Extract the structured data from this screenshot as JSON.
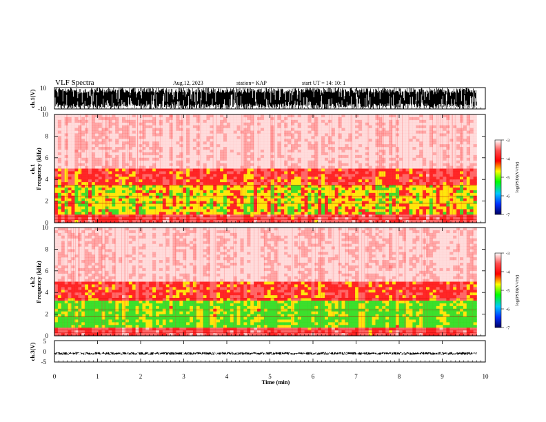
{
  "header": {
    "title": "VLF Spectra",
    "date": "Aug.12, 2023",
    "station": "station= KAP",
    "start": "start  UT  =   14: 10: 1"
  },
  "colors": {
    "background": "#ffffff",
    "waveform": "#000000",
    "spec_low": "#ffffff",
    "spec_mid": "#ff2020",
    "spec_high": "#ffee00",
    "spec_peak": "#22dd22"
  },
  "chart_data": [
    {
      "type": "line",
      "panel": "ch1-waveform",
      "ylabel": "ch.1(V)",
      "ylim": [
        -10,
        10
      ],
      "ytick_labels": [
        "10",
        "-10"
      ],
      "xlim": [
        0,
        10
      ],
      "description_of_values": "saturated waveform clipping near +10 and -10"
    },
    {
      "type": "heatmap",
      "panel": "ch1-spectrogram",
      "ylabel": "ch.1\nFrequency  (kHz)",
      "ylabel_line1": "ch.1",
      "ylabel_line2": "Frequency  (kHz)",
      "ylim": [
        0,
        10
      ],
      "ytick_labels": [
        "0",
        "2",
        "4",
        "6",
        "8",
        "10"
      ],
      "xlim": [
        0,
        9.8
      ],
      "band_kHz": [
        {
          "range": [
            0,
            0.7
          ],
          "level": -4.2
        },
        {
          "range": [
            0.7,
            3.5
          ],
          "level": -3.6
        },
        {
          "range": [
            3.5,
            5
          ],
          "level": -4.0
        },
        {
          "range": [
            5,
            10
          ],
          "level": -4.6
        }
      ],
      "colorbar": {
        "label": "log(PSD)(V²/Hz)",
        "range": [
          -7,
          -3
        ],
        "tick_labels": [
          "-3",
          "-4",
          "-5",
          "-6",
          "-7"
        ]
      }
    },
    {
      "type": "heatmap",
      "panel": "ch2-spectrogram",
      "ylabel": "ch.2\nFrequency  (kHz)",
      "ylabel_line1": "ch.2",
      "ylabel_line2": "Frequency  (kHz)",
      "ylim": [
        0,
        10
      ],
      "ytick_labels": [
        "0",
        "2",
        "4",
        "6",
        "8",
        "10"
      ],
      "xlim": [
        0,
        9.8
      ],
      "band_kHz": [
        {
          "range": [
            0,
            0.7
          ],
          "level": -4.2
        },
        {
          "range": [
            0.7,
            3.2
          ],
          "level": -3.3
        },
        {
          "range": [
            3.2,
            5
          ],
          "level": -4.0
        },
        {
          "range": [
            5,
            10
          ],
          "level": -4.6
        }
      ],
      "colorbar": {
        "label": "log(PSD)(V²/Hz)",
        "range": [
          -7,
          -3
        ],
        "tick_labels": [
          "-3",
          "-4",
          "-5",
          "-6",
          "-7"
        ]
      }
    },
    {
      "type": "line",
      "panel": "ch3-waveform",
      "ylabel": "ch.3(V)",
      "ylim": [
        -5,
        5
      ],
      "ytick_labels": [
        "5",
        "0",
        "-5"
      ],
      "xlim": [
        0,
        10
      ],
      "description_of_values": "flat signal near -1 V"
    }
  ],
  "xaxis": {
    "label": "Time  (min)",
    "range": [
      0,
      10
    ],
    "tick_labels": [
      "0",
      "1",
      "2",
      "3",
      "4",
      "5",
      "6",
      "7",
      "8",
      "9",
      "10"
    ]
  }
}
